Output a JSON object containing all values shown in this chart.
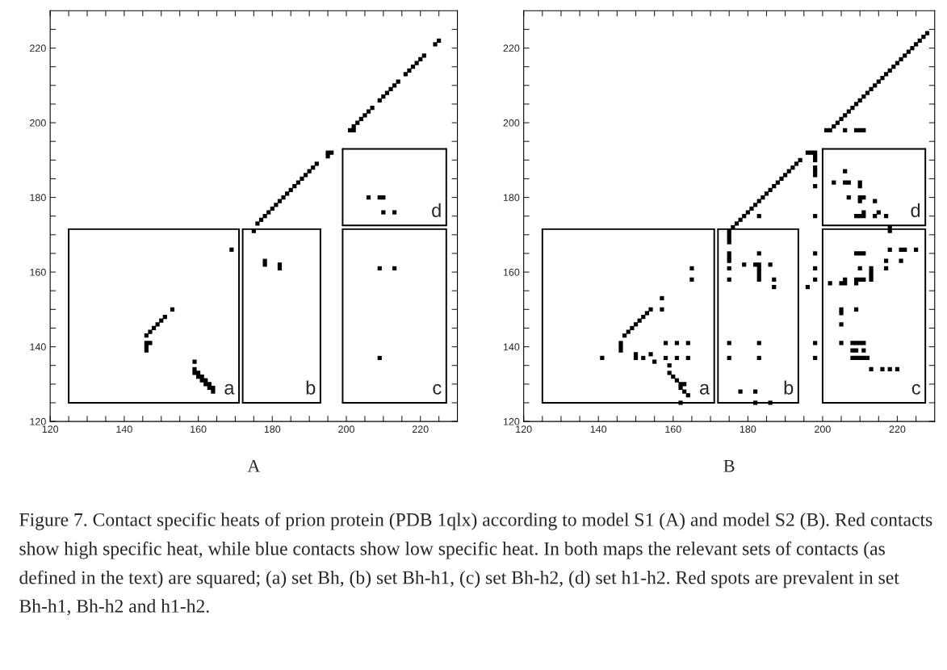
{
  "chart_data": [
    {
      "type": "scatter",
      "xlabel": "A",
      "xlim": [
        120,
        230
      ],
      "ylim": [
        120,
        230
      ],
      "xticks": [
        120,
        {
          "value": 125,
          "label": null
        },
        {
          "value": 130,
          "label": null
        },
        {
          "value": 135,
          "label": null
        },
        140,
        {
          "value": 145,
          "label": null
        },
        {
          "value": 150,
          "label": null
        },
        {
          "value": 155,
          "label": null
        },
        160,
        {
          "value": 165,
          "label": null
        },
        {
          "value": 170,
          "label": null
        },
        {
          "value": 175,
          "label": null
        },
        180,
        {
          "value": 185,
          "label": null
        },
        {
          "value": 190,
          "label": null
        },
        {
          "value": 195,
          "label": null
        },
        200,
        {
          "value": 205,
          "label": null
        },
        {
          "value": 210,
          "label": null
        },
        {
          "value": 215,
          "label": null
        },
        220,
        {
          "value": 225,
          "label": null
        }
      ],
      "yticks": [
        120,
        {
          "value": 125,
          "label": null
        },
        {
          "value": 130,
          "label": null
        },
        {
          "value": 135,
          "label": null
        },
        140,
        {
          "value": 145,
          "label": null
        },
        {
          "value": 150,
          "label": null
        },
        {
          "value": 155,
          "label": null
        },
        160,
        {
          "value": 165,
          "label": null
        },
        {
          "value": 170,
          "label": null
        },
        {
          "value": 175,
          "label": null
        },
        180,
        {
          "value": 185,
          "label": null
        },
        {
          "value": 190,
          "label": null
        },
        {
          "value": 195,
          "label": null
        },
        200,
        {
          "value": 205,
          "label": null
        },
        {
          "value": 210,
          "label": null
        },
        {
          "value": 215,
          "label": null
        },
        220,
        {
          "value": 225,
          "label": null
        }
      ],
      "series": [
        {
          "color": "#000000",
          "marker": "square",
          "x": [
            146,
            147,
            148,
            149,
            150,
            151,
            153,
            146,
            147,
            146,
            146,
            159,
            159,
            159,
            160,
            160,
            161,
            161,
            162,
            162,
            163,
            163,
            164,
            164,
            169,
            175,
            176,
            177,
            178,
            179,
            180,
            181,
            182,
            183,
            184,
            185,
            186,
            187,
            188,
            189,
            190,
            191,
            192,
            195,
            196,
            195,
            201,
            202,
            202,
            203,
            204,
            205,
            206,
            207,
            209,
            210,
            211,
            212,
            213,
            214,
            216,
            217,
            218,
            219,
            220,
            221,
            224,
            225,
            178,
            178,
            182,
            182,
            209,
            213,
            209,
            206,
            209,
            210,
            210,
            213
          ],
          "values": [
            143,
            144,
            145,
            146,
            147,
            148,
            150,
            141,
            141,
            140,
            139,
            136,
            134,
            133,
            133,
            132,
            131,
            132,
            131,
            130,
            130,
            129,
            129,
            128,
            166,
            171,
            173,
            174,
            175,
            176,
            177,
            178,
            179,
            180,
            181,
            182,
            183,
            184,
            185,
            186,
            187,
            188,
            189,
            192,
            192,
            191,
            198,
            198,
            199,
            200,
            201,
            202,
            203,
            204,
            206,
            207,
            208,
            209,
            210,
            211,
            213,
            214,
            215,
            216,
            217,
            218,
            221,
            222,
            163,
            162,
            162,
            161,
            161,
            161,
            137,
            180,
            180,
            180,
            176,
            176
          ]
        },
        {
          "type": "line",
          "color": "#000000",
          "x": [
            125,
            171
          ],
          "values": [
            125,
            125
          ]
        },
        {
          "type": "line",
          "color": "#000000",
          "x": [
            172,
            193
          ],
          "values": [
            125,
            125
          ]
        },
        {
          "type": "line",
          "color": "#000000",
          "x": [
            199,
            227
          ],
          "values": [
            125,
            125
          ]
        },
        {
          "type": "line",
          "color": "#000000",
          "x": [
            199,
            227
          ],
          "values": [
            172.5,
            172.5
          ]
        },
        {
          "type": "line",
          "color": "#000000",
          "x": [
            125,
            171
          ],
          "values": [
            171.5,
            171.5
          ]
        },
        {
          "type": "line",
          "color": "#000000",
          "x": [
            172,
            193
          ],
          "values": [
            171.5,
            171.5
          ]
        },
        {
          "type": "line",
          "color": "#000000",
          "x": [
            199,
            227
          ],
          "values": [
            171.5,
            171.5
          ]
        },
        {
          "type": "line",
          "color": "#000000",
          "x": [
            199,
            227
          ],
          "values": [
            193,
            193
          ]
        },
        {
          "type": "line",
          "color": "#000000",
          "x": [
            125,
            125
          ],
          "values": [
            125,
            171.5
          ]
        },
        {
          "type": "line",
          "color": "#000000",
          "x": [
            171,
            171
          ],
          "values": [
            125,
            171.5
          ]
        },
        {
          "type": "line",
          "color": "#000000",
          "x": [
            172,
            172
          ],
          "values": [
            125,
            171.5
          ]
        },
        {
          "type": "line",
          "color": "#000000",
          "x": [
            193,
            193
          ],
          "values": [
            125,
            171.5
          ]
        },
        {
          "type": "line",
          "color": "#000000",
          "x": [
            199,
            199
          ],
          "values": [
            125,
            171.5
          ]
        },
        {
          "type": "line",
          "color": "#000000",
          "x": [
            227,
            227
          ],
          "values": [
            125,
            171.5
          ]
        },
        {
          "type": "line",
          "color": "#000000",
          "x": [
            199,
            199
          ],
          "values": [
            172.5,
            193
          ]
        },
        {
          "type": "line",
          "color": "#000000",
          "x": [
            227,
            227
          ],
          "values": [
            172.5,
            193
          ]
        }
      ],
      "annotations": [
        "a",
        "b",
        "c",
        "d",
        "Figure 7. Contact specific heats of prion protein (PDB 1qlx) according to model S1 (A) and model S2 (B). Red contacts show high specific heat, while blue contacts show low specific heat. In both maps the relevant sets of contacts (as defined in the text) are squared; (a) set Bh, (b) set Bh-h1, (c) set Bh-h2, (d) set h1-h2. Red spots are prevalent in set Bh-h1, Bh-h2 and h1-h2."
      ]
    },
    {
      "type": "scatter",
      "xlabel": "B",
      "xlim": [
        120,
        230
      ],
      "ylim": [
        120,
        230
      ],
      "xticks": [
        120,
        {
          "value": 125,
          "label": null
        },
        {
          "value": 130,
          "label": null
        },
        {
          "value": 135,
          "label": null
        },
        140,
        {
          "value": 145,
          "label": null
        },
        {
          "value": 150,
          "label": null
        },
        {
          "value": 155,
          "label": null
        },
        160,
        {
          "value": 165,
          "label": null
        },
        {
          "value": 170,
          "label": null
        },
        {
          "value": 175,
          "label": null
        },
        180,
        {
          "value": 185,
          "label": null
        },
        {
          "value": 190,
          "label": null
        },
        {
          "value": 195,
          "label": null
        },
        200,
        {
          "value": 205,
          "label": null
        },
        {
          "value": 210,
          "label": null
        },
        {
          "value": 215,
          "label": null
        },
        220,
        {
          "value": 225,
          "label": null
        }
      ],
      "yticks": [
        120,
        {
          "value": 125,
          "label": null
        },
        {
          "value": 130,
          "label": null
        },
        {
          "value": 135,
          "label": null
        },
        140,
        {
          "value": 145,
          "label": null
        },
        {
          "value": 150,
          "label": null
        },
        {
          "value": 155,
          "label": null
        },
        160,
        {
          "value": 165,
          "label": null
        },
        {
          "value": 170,
          "label": null
        },
        {
          "value": 175,
          "label": null
        },
        180,
        {
          "value": 185,
          "label": null
        },
        {
          "value": 190,
          "label": null
        },
        {
          "value": 195,
          "label": null
        },
        200,
        {
          "value": 205,
          "label": null
        },
        {
          "value": 210,
          "label": null
        },
        {
          "value": 215,
          "label": null
        },
        220,
        {
          "value": 225,
          "label": null
        }
      ],
      "series": [
        {
          "color": "#000000",
          "marker": "square",
          "x": [
            202,
            203,
            204,
            205,
            206,
            207,
            208,
            209,
            210,
            211,
            212,
            213,
            214,
            215,
            216,
            217,
            218,
            219,
            220,
            221,
            222,
            223,
            224,
            225,
            226,
            227,
            228,
            201,
            206,
            209,
            210,
            211,
            176,
            177,
            178,
            179,
            180,
            181,
            182,
            183,
            184,
            185,
            186,
            187,
            188,
            189,
            190,
            191,
            192,
            193,
            194,
            175,
            175,
            175,
            175,
            196,
            197,
            198,
            198,
            198,
            198,
            198,
            198,
            198,
            198,
            198,
            198,
            198,
            196,
            198,
            198,
            183,
            175,
            175,
            175,
            175,
            175,
            175,
            175,
            179,
            182,
            183,
            183,
            183,
            183,
            183,
            183,
            186,
            187,
            187,
            183,
            183,
            178,
            182,
            182,
            186,
            203,
            206,
            206,
            207,
            210,
            210,
            207,
            210,
            211,
            210,
            214,
            209,
            210,
            211,
            211,
            214,
            215,
            217,
            218,
            218,
            218,
            221,
            222,
            225,
            221,
            217,
            217,
            209,
            210,
            211,
            210,
            213,
            213,
            213,
            213,
            209,
            210,
            211,
            209,
            206,
            206,
            205,
            202,
            205,
            205,
            209,
            205,
            205,
            208,
            209,
            210,
            211,
            208,
            209,
            211,
            208,
            209,
            210,
            211,
            212,
            213,
            216,
            218,
            220,
            147,
            148,
            149,
            150,
            151,
            152,
            153,
            154,
            157,
            157,
            165,
            165,
            141,
            146,
            146,
            146,
            150,
            150,
            154,
            155,
            152,
            158,
            161,
            164,
            158,
            161,
            164,
            159,
            159,
            160,
            161,
            162,
            162,
            163,
            163,
            164,
            162
          ],
          "values": [
            198,
            199,
            200,
            201,
            202,
            203,
            204,
            205,
            206,
            207,
            208,
            209,
            210,
            211,
            212,
            213,
            214,
            215,
            216,
            217,
            218,
            219,
            220,
            221,
            222,
            223,
            224,
            198,
            198,
            198,
            198,
            198,
            172,
            173,
            174,
            175,
            176,
            177,
            178,
            179,
            180,
            181,
            182,
            183,
            184,
            185,
            186,
            187,
            188,
            189,
            190,
            171,
            170,
            169,
            168,
            192,
            192,
            192,
            191,
            190,
            188,
            187,
            186,
            183,
            175,
            165,
            161,
            158,
            156,
            141,
            137,
            175,
            165,
            164,
            163,
            161,
            158,
            141,
            137,
            162,
            162,
            162,
            161,
            160,
            159,
            165,
            158,
            162,
            158,
            156,
            141,
            137,
            128,
            128,
            125,
            125,
            184,
            187,
            184,
            184,
            184,
            183,
            180,
            180,
            180,
            179,
            179,
            175,
            175,
            175,
            176,
            175,
            176,
            175,
            172,
            171,
            166,
            166,
            166,
            166,
            163,
            163,
            161,
            165,
            165,
            165,
            161,
            161,
            160,
            159,
            158,
            158,
            158,
            158,
            157,
            158,
            157,
            157,
            157,
            150,
            149,
            150,
            146,
            141,
            141,
            141,
            141,
            141,
            139,
            139,
            139,
            137,
            137,
            137,
            137,
            137,
            134,
            134,
            134,
            134,
            143,
            144,
            145,
            146,
            147,
            148,
            149,
            150,
            153,
            150,
            161,
            158,
            137,
            141,
            139,
            140,
            138,
            137,
            138,
            136,
            137,
            141,
            141,
            141,
            137,
            137,
            137,
            135,
            133,
            132,
            131,
            130,
            129,
            130,
            128,
            127,
            125
          ]
        },
        {
          "type": "line",
          "color": "#000000",
          "x": [
            125,
            171
          ],
          "values": [
            125,
            125
          ]
        },
        {
          "type": "line",
          "color": "#000000",
          "x": [
            172,
            193.5
          ],
          "values": [
            125,
            125
          ]
        },
        {
          "type": "line",
          "color": "#000000",
          "x": [
            200,
            227.5
          ],
          "values": [
            125,
            125
          ]
        },
        {
          "type": "line",
          "color": "#000000",
          "x": [
            200,
            227.5
          ],
          "values": [
            172.5,
            172.5
          ]
        },
        {
          "type": "line",
          "color": "#000000",
          "x": [
            125,
            171
          ],
          "values": [
            171.5,
            171.5
          ]
        },
        {
          "type": "line",
          "color": "#000000",
          "x": [
            172,
            193.5
          ],
          "values": [
            171.5,
            171.5
          ]
        },
        {
          "type": "line",
          "color": "#000000",
          "x": [
            200,
            227.5
          ],
          "values": [
            171.5,
            171.5
          ]
        },
        {
          "type": "line",
          "color": "#000000",
          "x": [
            200,
            227.5
          ],
          "values": [
            193,
            193
          ]
        },
        {
          "type": "line",
          "color": "#000000",
          "x": [
            125,
            125
          ],
          "values": [
            125,
            171.5
          ]
        },
        {
          "type": "line",
          "color": "#000000",
          "x": [
            171,
            171
          ],
          "values": [
            125,
            171.5
          ]
        },
        {
          "type": "line",
          "color": "#000000",
          "x": [
            172,
            172
          ],
          "values": [
            125,
            171.5
          ]
        },
        {
          "type": "line",
          "color": "#000000",
          "x": [
            193.5,
            193.5
          ],
          "values": [
            125,
            171.5
          ]
        },
        {
          "type": "line",
          "color": "#000000",
          "x": [
            200,
            200
          ],
          "values": [
            125,
            171.5
          ]
        },
        {
          "type": "line",
          "color": "#000000",
          "x": [
            227.5,
            227.5
          ],
          "values": [
            125,
            171.5
          ]
        },
        {
          "type": "line",
          "color": "#000000",
          "x": [
            200,
            200
          ],
          "values": [
            172.5,
            193
          ]
        },
        {
          "type": "line",
          "color": "#000000",
          "x": [
            227.5,
            227.5
          ],
          "values": [
            172.5,
            193
          ]
        }
      ],
      "annotations": [
        "a",
        "b",
        "c",
        "d"
      ]
    }
  ]
}
